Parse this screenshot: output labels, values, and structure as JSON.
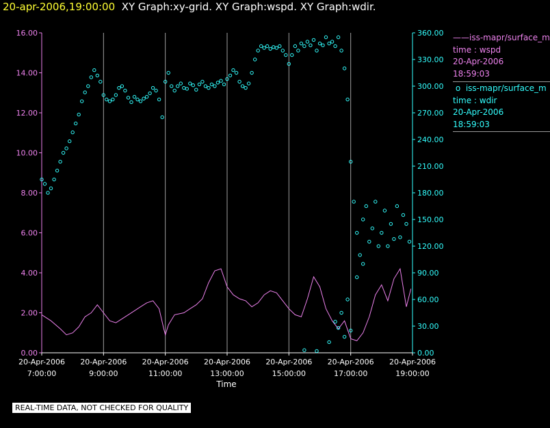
{
  "header": {
    "timestamp": "20-apr-2006,19:00:00",
    "titles": "XY Graph:xy-grid.  XY Graph:wspd.  XY Graph:wdir."
  },
  "footer_note": "REAL-TIME DATA, NOT CHECKED FOR QUALITY",
  "legend": [
    {
      "symbol": "——",
      "name": "iss-mapr/surface_m",
      "field": "time : wspd",
      "date": "20-Apr-2006",
      "time": "18:59:03"
    },
    {
      "symbol": "o",
      "name": "iss-mapr/surface_m",
      "field": "time : wdir",
      "date": "20-Apr-2006",
      "time": "18:59:03"
    }
  ],
  "colors": {
    "wspd": "#ee82ee",
    "wdir": "#33ffff",
    "grid": "#a0a0a0",
    "background": "#000000"
  },
  "chart_data": {
    "type": "line",
    "xlabel": "Time",
    "x_ticks": [
      {
        "date": "20-Apr-2006",
        "time": "7:00:00"
      },
      {
        "date": "20-Apr-2006",
        "time": "9:00:00"
      },
      {
        "date": "20-Apr-2006",
        "time": "11:00:00"
      },
      {
        "date": "20-Apr-2006",
        "time": "13:00:00"
      },
      {
        "date": "20-Apr-2006",
        "time": "15:00:00"
      },
      {
        "date": "20-Apr-2006",
        "time": "17:00:00"
      },
      {
        "date": "20-Apr-2006",
        "time": "19:00:00"
      }
    ],
    "xlim_hours": [
      7.0,
      19.0
    ],
    "y_left": {
      "lim": [
        0,
        16
      ],
      "ticks": [
        "0.00",
        "2.00",
        "4.00",
        "6.00",
        "8.00",
        "10.00",
        "12.00",
        "14.00",
        "16.00"
      ]
    },
    "y_right": {
      "lim": [
        0,
        360
      ],
      "ticks": [
        "0.00",
        "30.00",
        "60.00",
        "90.00",
        "120.00",
        "150.00",
        "180.00",
        "210.00",
        "240.00",
        "270.00",
        "300.00",
        "330.00",
        "360.00"
      ]
    },
    "grid": "vertical",
    "legend_position": "right",
    "series": [
      {
        "key": "wspd",
        "axis": "left",
        "style": "line",
        "points": [
          [
            7.0,
            1.9
          ],
          [
            7.3,
            1.6
          ],
          [
            7.6,
            1.2
          ],
          [
            7.8,
            0.9
          ],
          [
            8.0,
            1.0
          ],
          [
            8.2,
            1.3
          ],
          [
            8.4,
            1.8
          ],
          [
            8.6,
            2.0
          ],
          [
            8.8,
            2.4
          ],
          [
            9.0,
            2.0
          ],
          [
            9.2,
            1.6
          ],
          [
            9.4,
            1.5
          ],
          [
            9.6,
            1.7
          ],
          [
            9.8,
            1.9
          ],
          [
            10.0,
            2.1
          ],
          [
            10.2,
            2.3
          ],
          [
            10.4,
            2.5
          ],
          [
            10.6,
            2.6
          ],
          [
            10.8,
            2.2
          ],
          [
            10.95,
            1.2
          ],
          [
            11.0,
            0.9
          ],
          [
            11.1,
            1.4
          ],
          [
            11.3,
            1.9
          ],
          [
            11.6,
            2.0
          ],
          [
            11.8,
            2.2
          ],
          [
            12.0,
            2.4
          ],
          [
            12.2,
            2.7
          ],
          [
            12.4,
            3.5
          ],
          [
            12.6,
            4.1
          ],
          [
            12.8,
            4.2
          ],
          [
            13.0,
            3.3
          ],
          [
            13.2,
            2.9
          ],
          [
            13.4,
            2.7
          ],
          [
            13.6,
            2.6
          ],
          [
            13.8,
            2.3
          ],
          [
            14.0,
            2.5
          ],
          [
            14.2,
            2.9
          ],
          [
            14.4,
            3.1
          ],
          [
            14.6,
            3.0
          ],
          [
            14.8,
            2.6
          ],
          [
            15.0,
            2.2
          ],
          [
            15.2,
            1.9
          ],
          [
            15.4,
            1.8
          ],
          [
            15.6,
            2.7
          ],
          [
            15.8,
            3.8
          ],
          [
            16.0,
            3.3
          ],
          [
            16.2,
            2.2
          ],
          [
            16.4,
            1.6
          ],
          [
            16.6,
            1.2
          ],
          [
            16.8,
            1.6
          ],
          [
            17.0,
            0.7
          ],
          [
            17.2,
            0.6
          ],
          [
            17.4,
            1.0
          ],
          [
            17.6,
            1.8
          ],
          [
            17.8,
            2.9
          ],
          [
            18.0,
            3.4
          ],
          [
            18.2,
            2.6
          ],
          [
            18.4,
            3.7
          ],
          [
            18.6,
            4.2
          ],
          [
            18.8,
            2.3
          ],
          [
            18.95,
            3.2
          ]
        ]
      },
      {
        "key": "wdir",
        "axis": "right",
        "style": "markers",
        "points": [
          [
            7.0,
            195
          ],
          [
            7.1,
            190
          ],
          [
            7.2,
            180
          ],
          [
            7.3,
            185
          ],
          [
            7.4,
            195
          ],
          [
            7.5,
            205
          ],
          [
            7.6,
            215
          ],
          [
            7.7,
            225
          ],
          [
            7.8,
            230
          ],
          [
            7.9,
            238
          ],
          [
            8.0,
            248
          ],
          [
            8.1,
            258
          ],
          [
            8.2,
            268
          ],
          [
            8.3,
            283
          ],
          [
            8.4,
            293
          ],
          [
            8.5,
            300
          ],
          [
            8.6,
            310
          ],
          [
            8.7,
            318
          ],
          [
            8.8,
            312
          ],
          [
            8.9,
            305
          ],
          [
            9.0,
            290
          ],
          [
            9.1,
            285
          ],
          [
            9.2,
            283
          ],
          [
            9.3,
            285
          ],
          [
            9.4,
            290
          ],
          [
            9.5,
            298
          ],
          [
            9.6,
            300
          ],
          [
            9.7,
            295
          ],
          [
            9.8,
            287
          ],
          [
            9.9,
            282
          ],
          [
            10.0,
            288
          ],
          [
            10.1,
            285
          ],
          [
            10.2,
            283
          ],
          [
            10.3,
            286
          ],
          [
            10.4,
            288
          ],
          [
            10.5,
            292
          ],
          [
            10.6,
            298
          ],
          [
            10.7,
            295
          ],
          [
            10.8,
            285
          ],
          [
            10.9,
            265
          ],
          [
            11.0,
            305
          ],
          [
            11.1,
            315
          ],
          [
            11.2,
            300
          ],
          [
            11.3,
            295
          ],
          [
            11.4,
            300
          ],
          [
            11.5,
            303
          ],
          [
            11.6,
            298
          ],
          [
            11.7,
            297
          ],
          [
            11.8,
            303
          ],
          [
            11.9,
            301
          ],
          [
            12.0,
            296
          ],
          [
            12.1,
            302
          ],
          [
            12.2,
            305
          ],
          [
            12.3,
            300
          ],
          [
            12.4,
            298
          ],
          [
            12.5,
            302
          ],
          [
            12.6,
            300
          ],
          [
            12.7,
            304
          ],
          [
            12.8,
            306
          ],
          [
            12.9,
            302
          ],
          [
            13.0,
            308
          ],
          [
            13.1,
            312
          ],
          [
            13.2,
            318
          ],
          [
            13.3,
            315
          ],
          [
            13.4,
            305
          ],
          [
            13.5,
            300
          ],
          [
            13.6,
            298
          ],
          [
            13.7,
            303
          ],
          [
            13.8,
            315
          ],
          [
            13.9,
            330
          ],
          [
            14.0,
            340
          ],
          [
            14.1,
            345
          ],
          [
            14.2,
            343
          ],
          [
            14.3,
            345
          ],
          [
            14.4,
            342
          ],
          [
            14.5,
            344
          ],
          [
            14.6,
            343
          ],
          [
            14.7,
            345
          ],
          [
            14.8,
            340
          ],
          [
            14.9,
            335
          ],
          [
            15.0,
            325
          ],
          [
            15.1,
            335
          ],
          [
            15.2,
            345
          ],
          [
            15.3,
            340
          ],
          [
            15.4,
            348
          ],
          [
            15.5,
            345
          ],
          [
            15.6,
            350
          ],
          [
            15.7,
            346
          ],
          [
            15.8,
            352
          ],
          [
            15.9,
            340
          ],
          [
            16.0,
            348
          ],
          [
            16.1,
            346
          ],
          [
            16.2,
            355
          ],
          [
            16.3,
            348
          ],
          [
            16.4,
            350
          ],
          [
            16.5,
            345
          ],
          [
            16.6,
            355
          ],
          [
            16.7,
            340
          ],
          [
            16.8,
            320
          ],
          [
            16.9,
            285
          ],
          [
            17.0,
            215
          ],
          [
            17.1,
            170
          ],
          [
            17.2,
            135
          ],
          [
            17.3,
            110
          ],
          [
            17.4,
            150
          ],
          [
            17.5,
            165
          ],
          [
            17.6,
            125
          ],
          [
            17.7,
            140
          ],
          [
            17.8,
            170
          ],
          [
            17.9,
            120
          ],
          [
            18.0,
            135
          ],
          [
            18.1,
            160
          ],
          [
            18.2,
            120
          ],
          [
            18.3,
            145
          ],
          [
            18.4,
            128
          ],
          [
            18.5,
            165
          ],
          [
            18.6,
            130
          ],
          [
            18.7,
            155
          ],
          [
            18.8,
            145
          ],
          [
            18.9,
            125
          ],
          [
            15.5,
            3
          ],
          [
            15.9,
            2
          ],
          [
            16.3,
            12
          ],
          [
            16.5,
            35
          ],
          [
            16.6,
            28
          ],
          [
            16.7,
            45
          ],
          [
            16.8,
            18
          ],
          [
            16.9,
            60
          ],
          [
            17.0,
            25
          ],
          [
            17.2,
            85
          ],
          [
            17.4,
            100
          ]
        ]
      }
    ]
  }
}
